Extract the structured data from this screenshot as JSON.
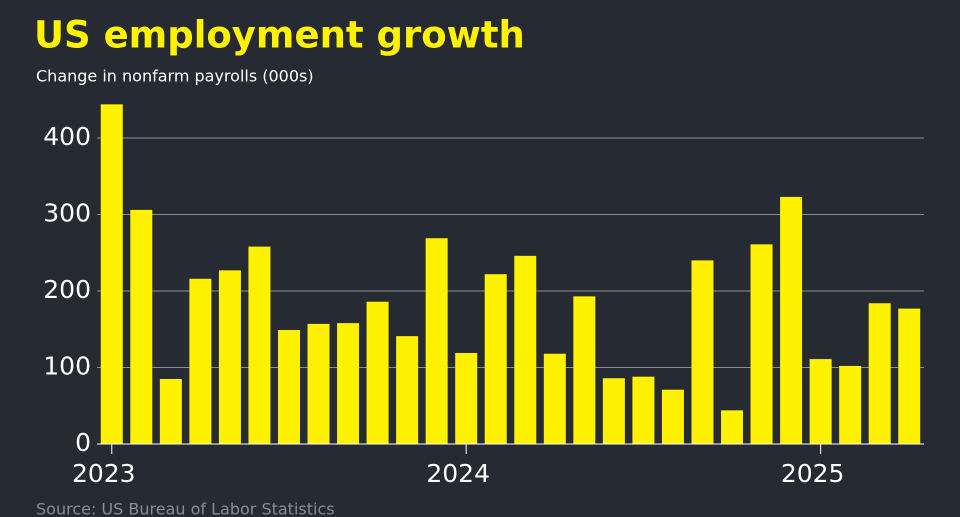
{
  "chart_data": {
    "type": "bar",
    "title": "US employment growth",
    "subtitle": "Change in nonfarm payrolls (000s)",
    "source": "Source: US Bureau of Labor Statistics",
    "categories": [
      "2023",
      null,
      null,
      null,
      null,
      null,
      null,
      null,
      null,
      null,
      null,
      null,
      "2024",
      null,
      null,
      null,
      null,
      null,
      null,
      null,
      null,
      null,
      null,
      null,
      "2025",
      null,
      null,
      null
    ],
    "values": [
      444,
      306,
      85,
      216,
      227,
      258,
      149,
      157,
      158,
      186,
      141,
      269,
      119,
      222,
      246,
      118,
      193,
      86,
      88,
      71,
      240,
      44,
      261,
      323,
      111,
      102,
      184,
      177
    ],
    "color": "#fff200",
    "ylim": [
      0,
      450
    ],
    "yticks": [
      0,
      100,
      200,
      300,
      400
    ],
    "grid": true
  }
}
